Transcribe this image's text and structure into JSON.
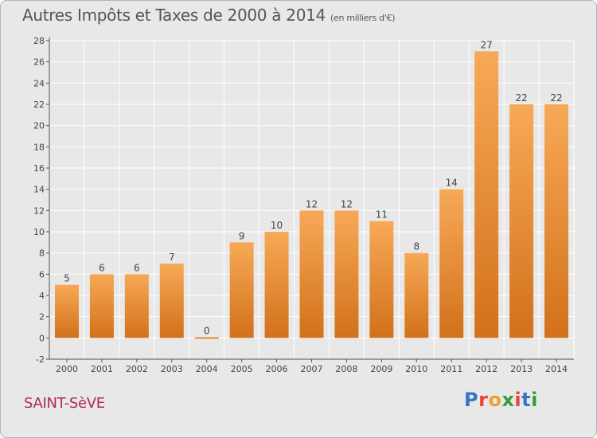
{
  "header": {
    "title": "Autres Impôts et Taxes de 2000 à 2014",
    "unit": "(en milliers d'€)"
  },
  "footer": {
    "commune": "SAINT-SèVE",
    "logo": {
      "text": "Proxiti",
      "letter_colors": [
        "#3a74c4",
        "#e8463a",
        "#e8a330",
        "#3a9a3a",
        "#e8463a",
        "#3a74c4",
        "#3a9a3a"
      ]
    }
  },
  "colors": {
    "bar_top": "#f7a957",
    "bar_bottom": "#d2711a",
    "background": "#e8e8e8",
    "grid": "#ffffff",
    "axis": "#555555",
    "title": "#555555",
    "commune": "#b0265a"
  },
  "chart_data": {
    "type": "bar",
    "categories": [
      "2000",
      "2001",
      "2002",
      "2003",
      "2004",
      "2005",
      "2006",
      "2007",
      "2008",
      "2009",
      "2010",
      "2011",
      "2012",
      "2013",
      "2014"
    ],
    "values": [
      5,
      6,
      6,
      7,
      0,
      9,
      10,
      12,
      12,
      11,
      8,
      14,
      27,
      22,
      22
    ],
    "data_labels": [
      "5",
      "6",
      "6",
      "7",
      "0",
      "9",
      "10",
      "12",
      "12",
      "11",
      "8",
      "14",
      "27",
      "22",
      "22"
    ],
    "ylim": [
      -2,
      28
    ],
    "yticks": [
      -2,
      0,
      2,
      4,
      6,
      8,
      10,
      12,
      14,
      16,
      18,
      20,
      22,
      24,
      26,
      28
    ],
    "grid": true,
    "legend": "none",
    "xlabel": "",
    "ylabel": ""
  }
}
